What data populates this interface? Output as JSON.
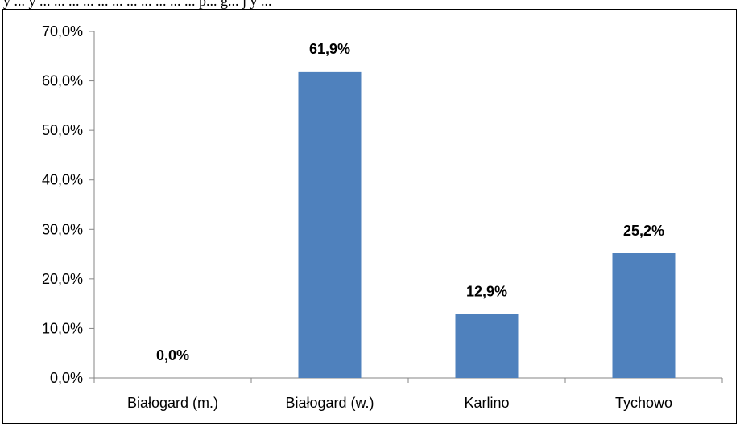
{
  "header": {
    "cutoff_text": "y ... y ... ... ... ... ... ... ... ... ... ... ... p... g... j y ..."
  },
  "chart_data": {
    "type": "bar",
    "categories": [
      "Białogard (m.)",
      "Białogard (w.)",
      "Karlino",
      "Tychowo"
    ],
    "values": [
      0.0,
      61.9,
      12.9,
      25.2
    ],
    "value_labels": [
      "0,0%",
      "61,9%",
      "12,9%",
      "25,2%"
    ],
    "y_ticks": [
      0,
      10,
      20,
      30,
      40,
      50,
      60,
      70
    ],
    "y_tick_labels": [
      "0,0%",
      "10,0%",
      "20,0%",
      "30,0%",
      "40,0%",
      "50,0%",
      "60,0%",
      "70,0%"
    ],
    "ylim": [
      0,
      70
    ],
    "title": "",
    "xlabel": "",
    "ylabel": "",
    "grid": false,
    "legend": false,
    "bar_color": "#4f81bd",
    "axis_color": "#868686"
  }
}
